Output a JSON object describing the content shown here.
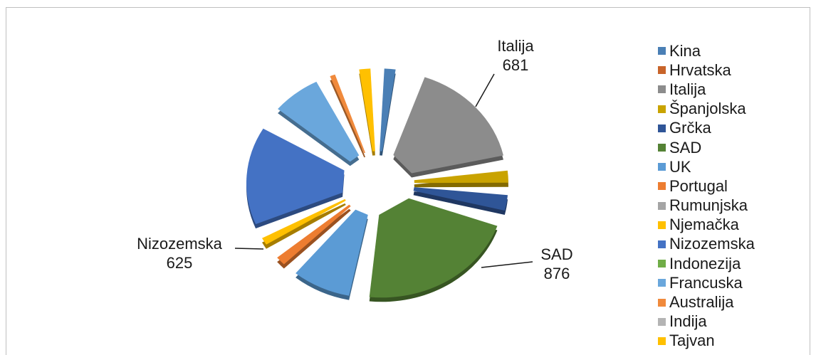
{
  "chart_data": {
    "type": "pie",
    "style": "3d-exploded",
    "title": "",
    "categories": [
      "Kina",
      "Hrvatska",
      "Italija",
      "Španjolska",
      "Grčka",
      "SAD",
      "UK",
      "Portugal",
      "Rumunjska",
      "Njemačka",
      "Nizozemska",
      "Indonezija",
      "Francuska",
      "Australija",
      "Indija",
      "Tajvan"
    ],
    "values": [
      118,
      60,
      681,
      130,
      150,
      876,
      360,
      112,
      22,
      103,
      625,
      38,
      310,
      88,
      52,
      118
    ],
    "data_labels": [
      {
        "category": "Italija",
        "name": "Italija",
        "value": "681"
      },
      {
        "category": "SAD",
        "name": "SAD",
        "value": "876"
      },
      {
        "category": "Nizozemska",
        "name": "Nizozemska",
        "value": "625"
      }
    ],
    "legend_position": "right",
    "colors": [
      "#4a7fb5",
      "#c8642a",
      "#8c8c8c",
      "#c9a300",
      "#2f5597",
      "#548235",
      "#5b9bd5",
      "#ed7d31",
      "#a5a5a5",
      "#ffc000",
      "#4472c4",
      "#70ad47",
      "#6aa7dc",
      "#f08a3c",
      "#b4b4b4",
      "#ffc000"
    ]
  }
}
